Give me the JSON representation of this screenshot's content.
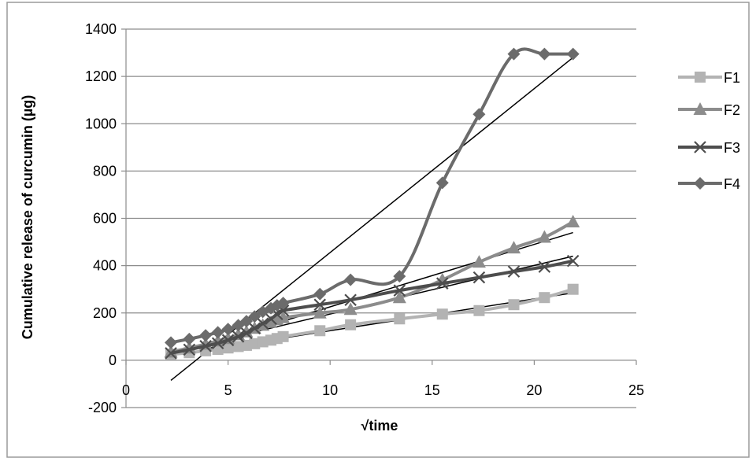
{
  "chart_data": {
    "type": "line",
    "title": "",
    "xlabel": "√time",
    "ylabel": "Cumulative release of curcumin (µg)",
    "xlim": [
      0,
      25
    ],
    "ylim": [
      -200,
      1400
    ],
    "x_ticks": [
      0,
      5,
      10,
      15,
      20,
      25
    ],
    "y_ticks": [
      -200,
      0,
      200,
      400,
      600,
      800,
      1000,
      1200,
      1400
    ],
    "grid": "horizontal",
    "legend_position": "right",
    "x": [
      2.2,
      3.1,
      3.9,
      4.5,
      5.0,
      5.5,
      5.9,
      6.3,
      6.7,
      7.1,
      7.4,
      7.7,
      9.5,
      11.0,
      13.4,
      15.5,
      17.3,
      19.0,
      20.5,
      21.9
    ],
    "series": [
      {
        "name": "F1",
        "color": "#b3b3b3",
        "marker": "square",
        "values": [
          25,
          32,
          40,
          46,
          52,
          58,
          63,
          70,
          78,
          85,
          92,
          100,
          125,
          150,
          175,
          195,
          210,
          235,
          265,
          300
        ],
        "trend": [
          [
            2.2,
            20
          ],
          [
            21.9,
            285
          ]
        ]
      },
      {
        "name": "F2",
        "color": "#8c8c8c",
        "marker": "triangle",
        "values": [
          35,
          52,
          68,
          82,
          92,
          108,
          120,
          135,
          148,
          160,
          172,
          180,
          200,
          215,
          265,
          340,
          415,
          475,
          520,
          585
        ],
        "trend": [
          [
            2.2,
            20
          ],
          [
            21.9,
            540
          ]
        ]
      },
      {
        "name": "F3",
        "color": "#4d4d4d",
        "marker": "x",
        "values": [
          30,
          45,
          60,
          72,
          85,
          100,
          115,
          135,
          155,
          175,
          195,
          210,
          235,
          255,
          295,
          325,
          350,
          375,
          395,
          420
        ],
        "trend": [
          [
            2.2,
            35
          ],
          [
            21.9,
            440
          ]
        ]
      },
      {
        "name": "F4",
        "color": "#6b6b6b",
        "marker": "diamond",
        "values": [
          75,
          90,
          105,
          118,
          132,
          148,
          165,
          185,
          205,
          220,
          232,
          242,
          280,
          340,
          355,
          750,
          1040,
          1295,
          1295,
          1295
        ],
        "trend": [
          [
            2.2,
            -85
          ],
          [
            21.9,
            1280
          ]
        ]
      }
    ]
  }
}
